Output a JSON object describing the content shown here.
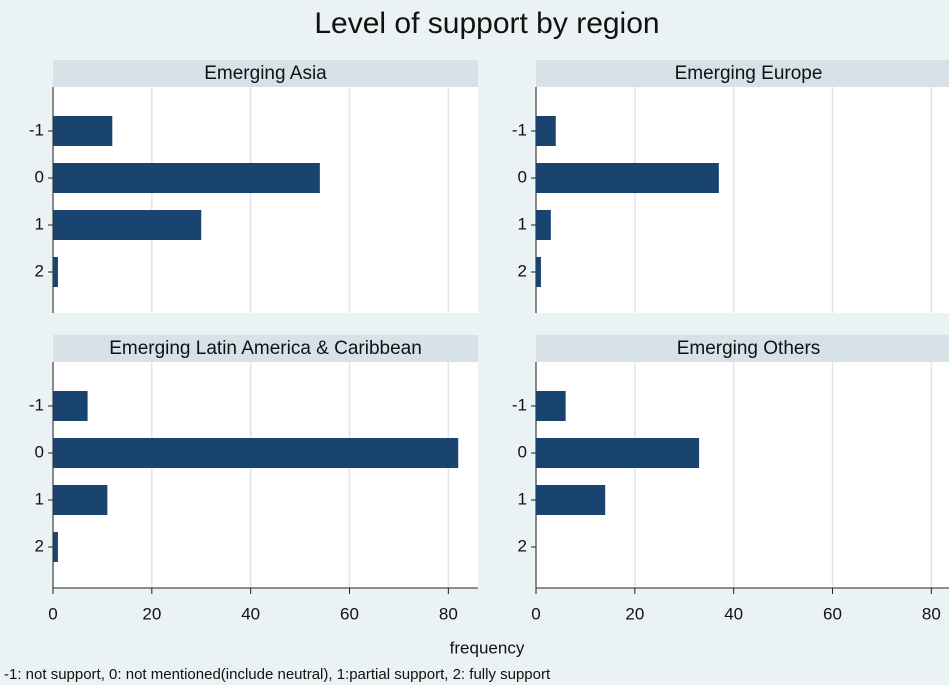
{
  "title": "Level of support by region",
  "x_label": "frequency",
  "note": "-1: not support, 0: not mentioned(include neutral), 1:partial support, 2: fully support",
  "chart_data": [
    {
      "type": "bar",
      "orientation": "horizontal",
      "title": "Emerging Asia",
      "categories": [
        "-1",
        "0",
        "1",
        "2"
      ],
      "values": [
        12,
        54,
        30,
        1
      ],
      "color": "#1a4470",
      "xlim": [
        0,
        86
      ],
      "xticks": [
        0,
        20,
        40,
        60,
        80
      ],
      "grid": true
    },
    {
      "type": "bar",
      "orientation": "horizontal",
      "title": "Emerging Europe",
      "categories": [
        "-1",
        "0",
        "1",
        "2"
      ],
      "values": [
        4,
        37,
        3,
        1
      ],
      "color": "#1a4470",
      "xlim": [
        0,
        86
      ],
      "xticks": [
        0,
        20,
        40,
        60,
        80
      ],
      "grid": true
    },
    {
      "type": "bar",
      "orientation": "horizontal",
      "title": "Emerging Latin America & Caribbean",
      "categories": [
        "-1",
        "0",
        "1",
        "2"
      ],
      "values": [
        7,
        82,
        11,
        1
      ],
      "color": "#1a4470",
      "xlim": [
        0,
        86
      ],
      "xticks": [
        0,
        20,
        40,
        60,
        80
      ],
      "grid": true
    },
    {
      "type": "bar",
      "orientation": "horizontal",
      "title": "Emerging Others",
      "categories": [
        "-1",
        "0",
        "1",
        "2"
      ],
      "values": [
        6,
        33,
        14,
        0
      ],
      "color": "#1a4470",
      "xlim": [
        0,
        86
      ],
      "xticks": [
        0,
        20,
        40,
        60,
        80
      ],
      "grid": true
    }
  ]
}
